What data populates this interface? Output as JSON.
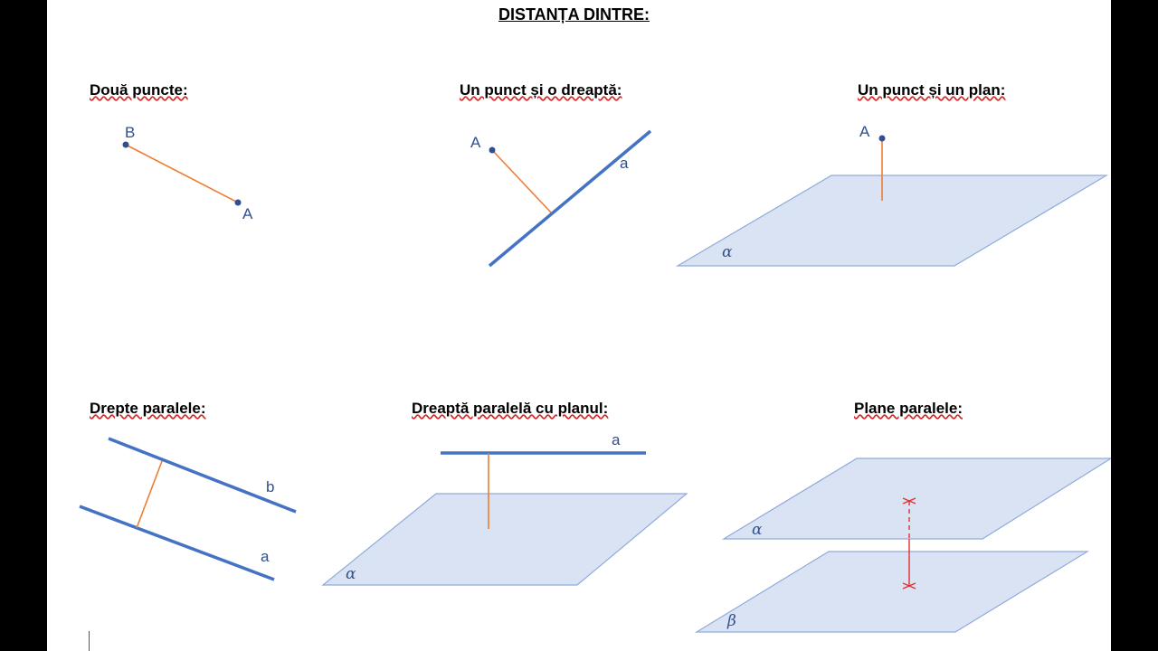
{
  "title": "DISTANȚA DINTRE:",
  "colors": {
    "line": "#4472c4",
    "segment": "#ed7d31",
    "plane_fill": "#dae3f3",
    "plane_stroke": "#8faadc",
    "point": "#2f4f8f",
    "label": "#2f4f8f",
    "marker": "#e03030"
  },
  "panels": {
    "two_points": {
      "heading": "Două puncte:",
      "point_b": "B",
      "point_a": "A"
    },
    "point_line": {
      "heading": "Un punct și o dreaptă:",
      "point_a": "A",
      "line_a": "a"
    },
    "point_plane": {
      "heading": "Un punct și un plan:",
      "point_a": "A",
      "plane_alpha": "α"
    },
    "parallel_lines": {
      "heading": "Drepte paralele:",
      "line_b": "b",
      "line_a": "a"
    },
    "line_parallel_plane": {
      "heading": "Dreaptă paralelă cu planul:",
      "line_a": "a",
      "plane_alpha": "α"
    },
    "parallel_planes": {
      "heading": "Plane paralele:",
      "plane_alpha": "α",
      "plane_beta": "β"
    }
  }
}
